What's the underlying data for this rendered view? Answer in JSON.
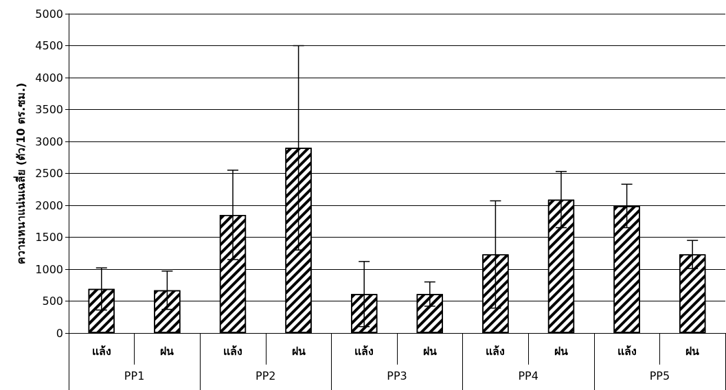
{
  "chart_data": {
    "type": "bar",
    "ylabel": "ความหนาแน่นเฉลี่ย (ตัว/10 ตร.ซม.)",
    "categories": [
      "แล้ง",
      "ฝน",
      "แล้ง",
      "ฝน",
      "แล้ง",
      "ฝน",
      "แล้ง",
      "ฝน",
      "แล้ง",
      "ฝน"
    ],
    "annotations": [
      "PP1",
      "PP2",
      "PP3",
      "PP4",
      "PP5"
    ],
    "values": [
      690,
      670,
      1850,
      2900,
      610,
      610,
      1230,
      2090,
      1990,
      1230
    ],
    "errors": [
      330,
      300,
      700,
      1600,
      510,
      190,
      840,
      440,
      340,
      220
    ],
    "color": "#000000",
    "ylim": [
      0,
      5000
    ],
    "yticks": [
      0,
      500,
      1000,
      1500,
      2000,
      2500,
      3000,
      3500,
      4000,
      4500,
      5000
    ],
    "grid": "y"
  }
}
